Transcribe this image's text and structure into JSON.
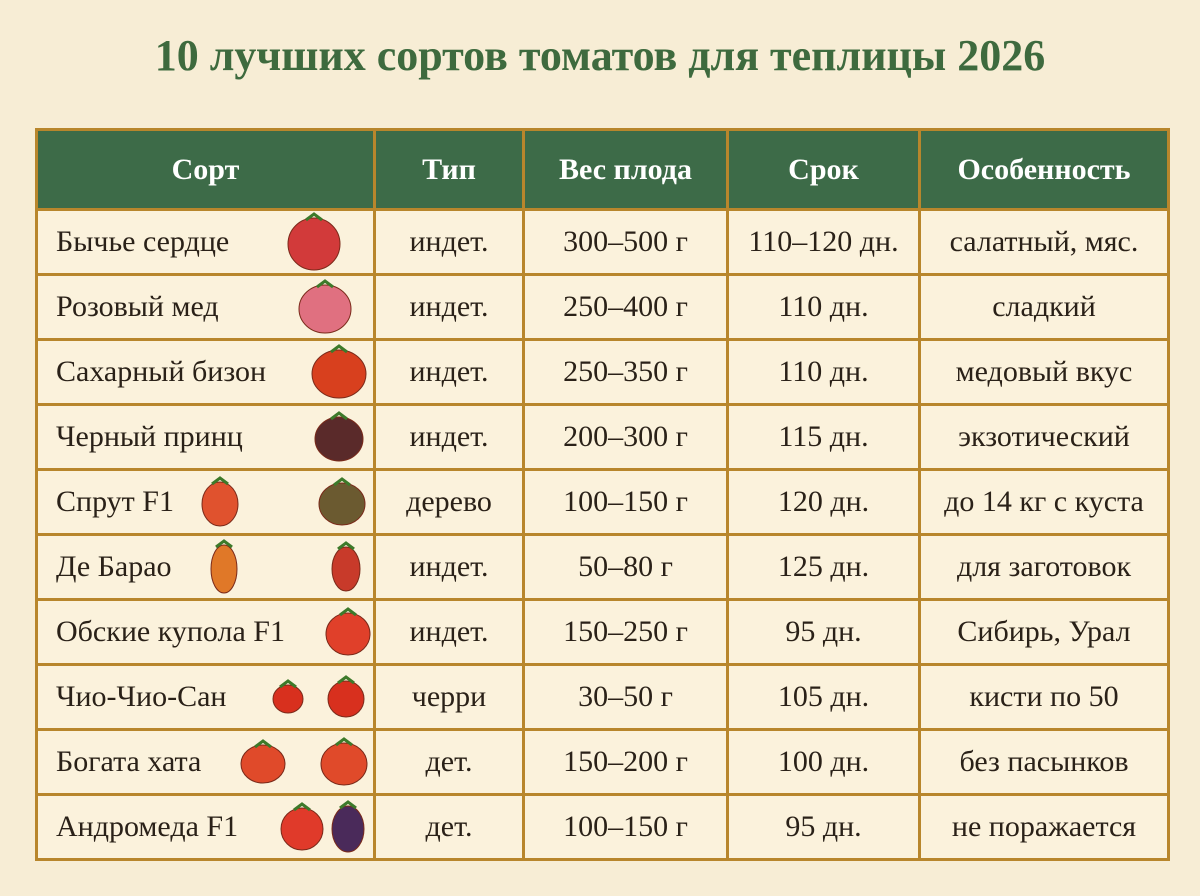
{
  "title": "10 лучших сортов томатов для теплицы 2026",
  "table": {
    "headers": [
      "Сорт",
      "Тип",
      "Вес плода",
      "Срок",
      "Особенность"
    ],
    "rows": [
      [
        "Бычье сердце",
        "индет.",
        "300–500 г",
        "110–120 дн.",
        "салатный, мяс."
      ],
      [
        "Розовый мед",
        "индет.",
        "250–400 г",
        "110 дн.",
        "сладкий"
      ],
      [
        "Сахарный бизон",
        "индет.",
        "250–350 г",
        "110 дн.",
        "медовый вкус"
      ],
      [
        "Черный принц",
        "индет.",
        "200–300 г",
        "115 дн.",
        "экзотический"
      ],
      [
        "Спрут F1",
        "дерево",
        "100–150 г",
        "120 дн.",
        "до 14 кг с куста"
      ],
      [
        "Де Барао",
        "индет.",
        "50–80 г",
        "125 дн.",
        "для заготовок"
      ],
      [
        "Обские купола F1",
        "индет.",
        "150–250 г",
        "95 дн.",
        "Сибирь, Урал"
      ],
      [
        "Чио-Чио-Сан",
        "черри",
        "30–50 г",
        "105 дн.",
        "кисти по 50"
      ],
      [
        "Богата хата",
        "дет.",
        "150–200 г",
        "100 дн.",
        "без пасынков"
      ],
      [
        "Андромеда F1",
        "дет.",
        "100–150 г",
        "95 дн.",
        "не поражается"
      ]
    ]
  }
}
